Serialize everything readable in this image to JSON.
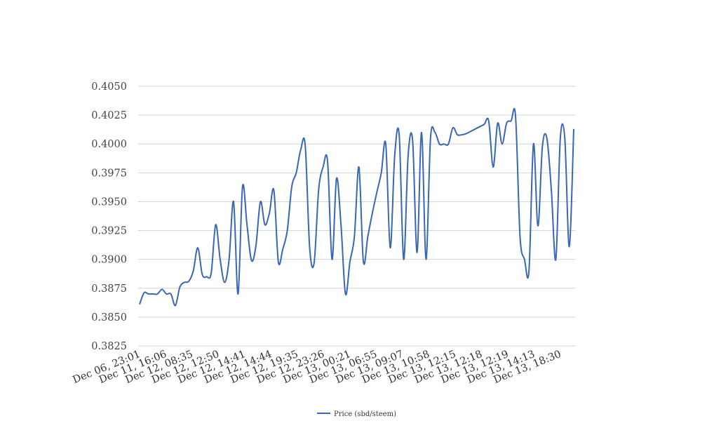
{
  "chart_data": {
    "type": "line",
    "title": "",
    "xlabel": "",
    "ylabel": "",
    "ylim": [
      0.3825,
      0.405
    ],
    "yticks": [
      "0.3825",
      "0.3850",
      "0.3875",
      "0.3900",
      "0.3925",
      "0.3950",
      "0.3975",
      "0.4000",
      "0.4025",
      "0.4050"
    ],
    "grid": "horizontal",
    "legend_position": "bottom",
    "xtick_labels": [
      "Dec 06, 23:01",
      "Dec 11, 16:06",
      "Dec 12, 08:35",
      "Dec 12, 12:50",
      "Dec 12, 14:41",
      "Dec 12, 14:44",
      "Dec 12, 19:35",
      "Dec 12, 23:26",
      "Dec 13, 00:21",
      "Dec 13, 06:55",
      "Dec 13, 09:07",
      "Dec 13, 10:58",
      "Dec 13, 12:15",
      "Dec 13, 12:18",
      "Dec 13, 12:19",
      "Dec 13, 14:13",
      "Dec 13, 18:30"
    ],
    "series": [
      {
        "name": "Price (sbd/steem)",
        "color": "#3a66b8",
        "values": [
          0.3861,
          0.3871,
          0.387,
          0.387,
          0.387,
          0.3874,
          0.387,
          0.387,
          0.386,
          0.3876,
          0.388,
          0.3881,
          0.389,
          0.391,
          0.3887,
          0.3885,
          0.3888,
          0.393,
          0.39,
          0.388,
          0.39,
          0.395,
          0.387,
          0.3963,
          0.393,
          0.3899,
          0.3912,
          0.395,
          0.393,
          0.394,
          0.396,
          0.3898,
          0.3909,
          0.3925,
          0.3963,
          0.3975,
          0.3995,
          0.3999,
          0.391,
          0.3897,
          0.396,
          0.398,
          0.3985,
          0.39,
          0.397,
          0.393,
          0.387,
          0.3898,
          0.392,
          0.398,
          0.3898,
          0.392,
          0.394,
          0.3958,
          0.3975,
          0.4,
          0.391,
          0.399,
          0.4008,
          0.39,
          0.399,
          0.4003,
          0.3906,
          0.401,
          0.39,
          0.4005,
          0.401,
          0.4,
          0.4,
          0.4,
          0.4014,
          0.4008,
          0.4008,
          0.4009,
          0.4011,
          0.4013,
          0.4015,
          0.4017,
          0.402,
          0.398,
          0.4018,
          0.4,
          0.4018,
          0.402,
          0.4024,
          0.392,
          0.39,
          0.389,
          0.4,
          0.3929,
          0.3998,
          0.4005,
          0.396,
          0.39,
          0.4005,
          0.4005,
          0.3911,
          0.4013
        ]
      }
    ]
  }
}
